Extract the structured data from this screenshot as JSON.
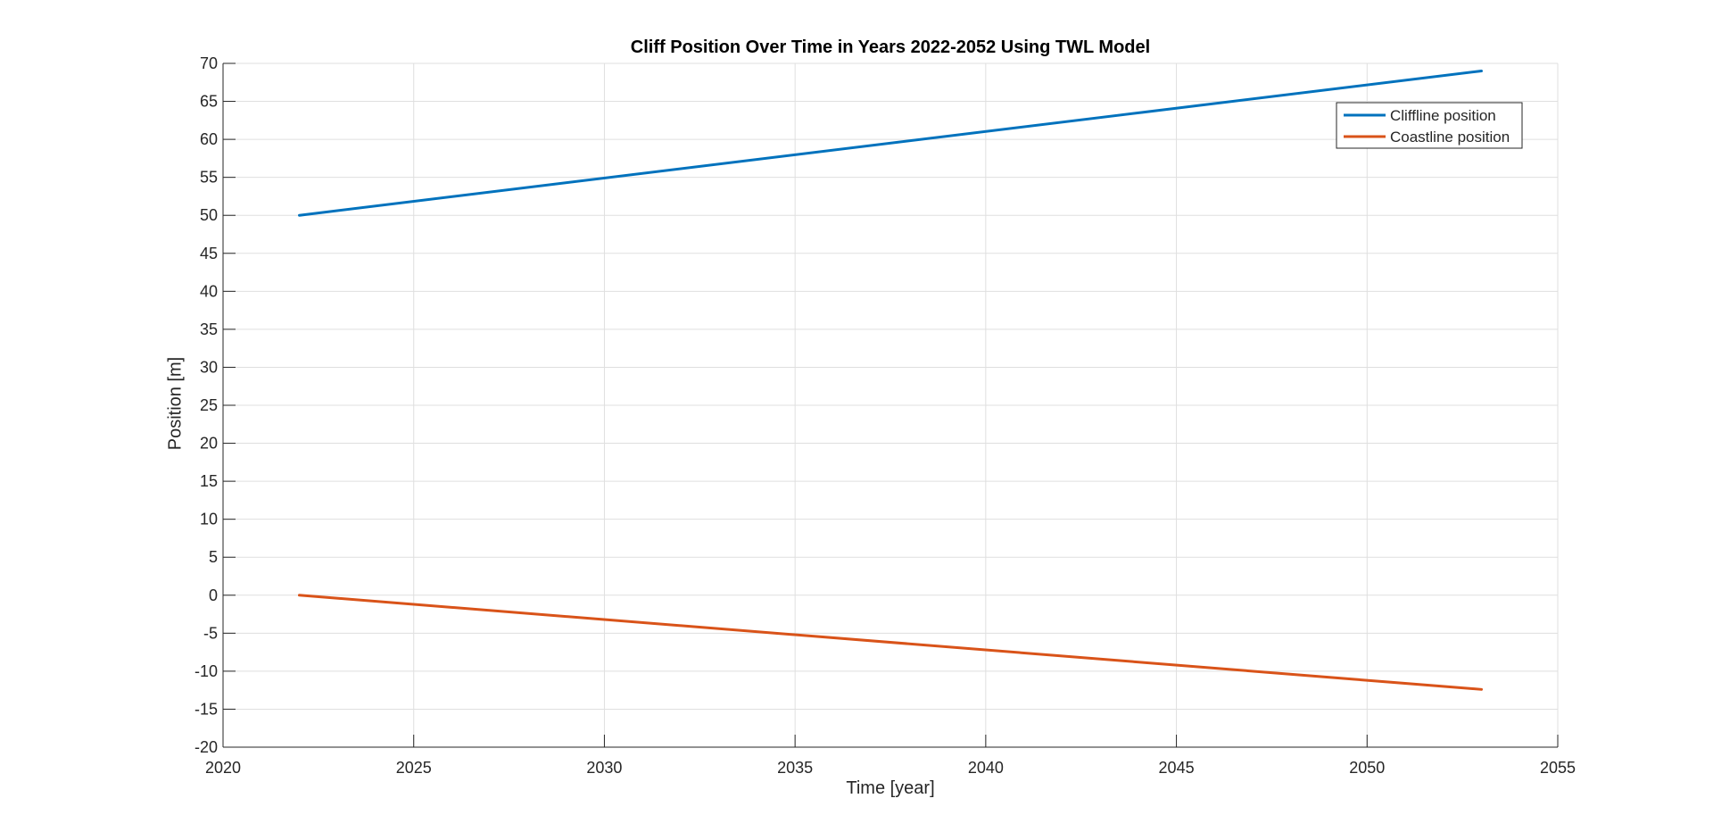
{
  "chart_data": {
    "type": "line",
    "title": "Cliff Position Over Time in Years 2022-2052 Using TWL Model",
    "xlabel": "Time [year]",
    "ylabel": "Position [m]",
    "xlim": [
      2020,
      2055
    ],
    "ylim": [
      -20,
      70
    ],
    "xticks": [
      2020,
      2025,
      2030,
      2035,
      2040,
      2045,
      2050,
      2055
    ],
    "yticks": [
      -20,
      -15,
      -10,
      -5,
      0,
      5,
      10,
      15,
      20,
      25,
      30,
      35,
      40,
      45,
      50,
      55,
      60,
      65,
      70
    ],
    "grid": true,
    "legend_location": "top-right",
    "series": [
      {
        "name": "Cliffline position",
        "color": "#0072BD",
        "x": [
          2022,
          2053
        ],
        "y": [
          50,
          69
        ]
      },
      {
        "name": "Coastline position",
        "color": "#D95319",
        "x": [
          2022,
          2053
        ],
        "y": [
          0,
          -12.4
        ]
      }
    ]
  }
}
